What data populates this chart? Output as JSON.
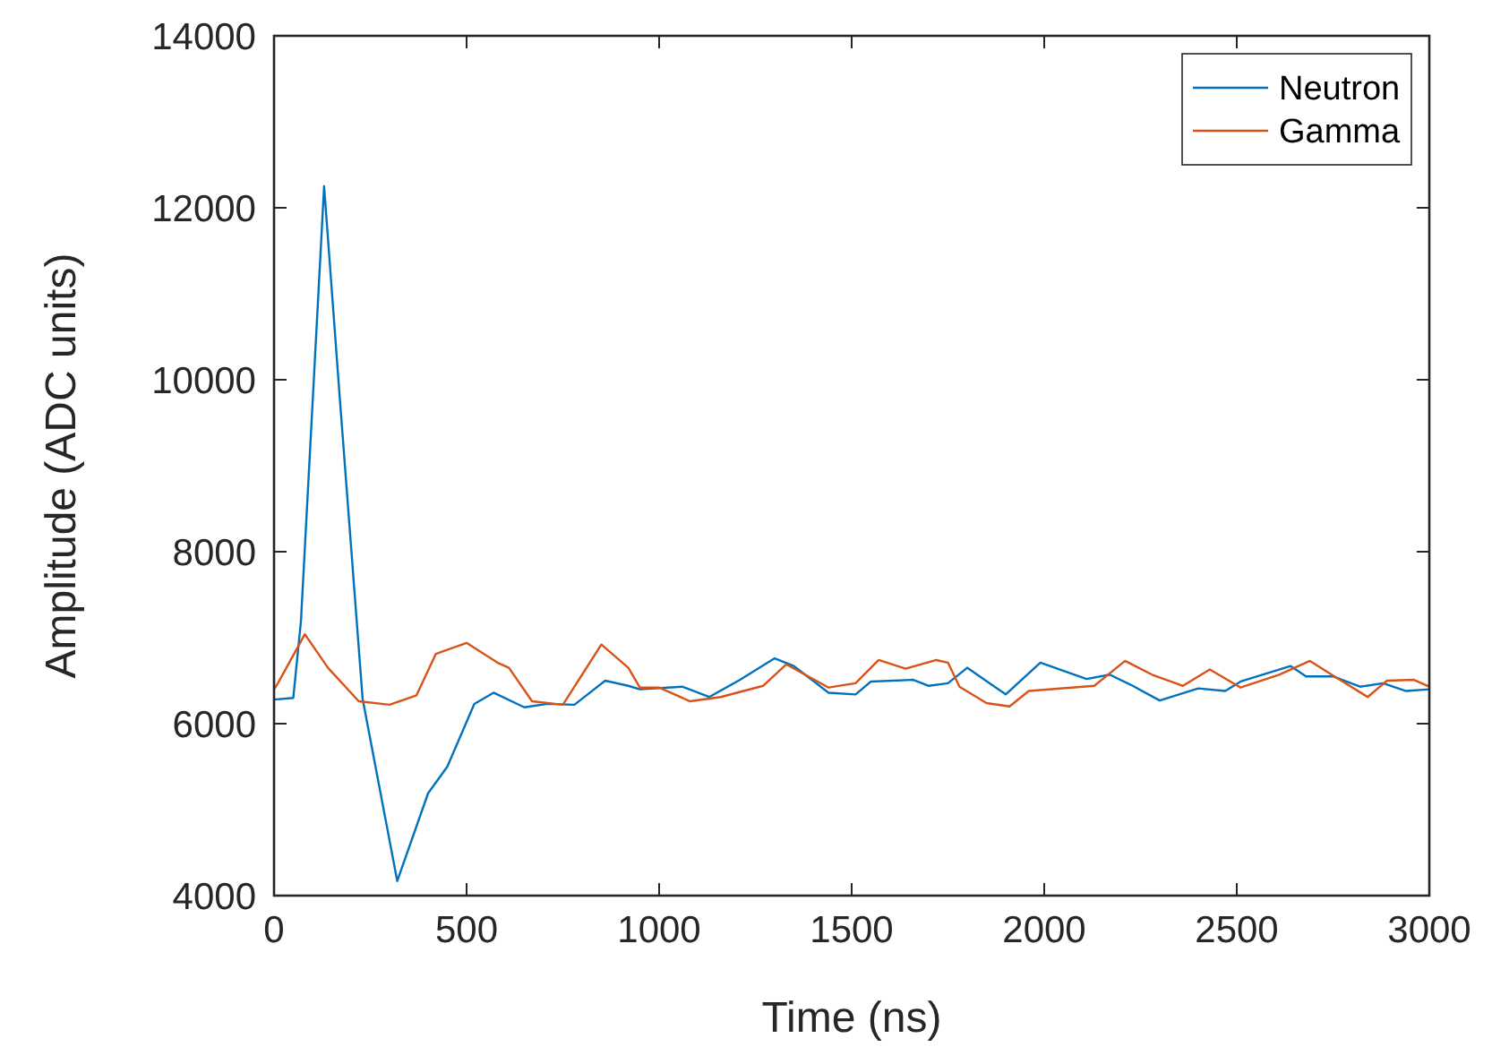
{
  "chart_data": {
    "type": "line",
    "xlabel": "Time (ns)",
    "ylabel": "Amplitude (ADC units)",
    "xlim": [
      0,
      3000
    ],
    "xticks": [
      0,
      500,
      1000,
      1500,
      2000,
      2500,
      3000
    ],
    "ylim": [
      4000,
      14000
    ],
    "yticks": [
      4000,
      6000,
      8000,
      10000,
      12000,
      14000
    ],
    "grid": false,
    "legend": "top right",
    "marker": "none",
    "line_style": "solid",
    "series": [
      {
        "name": "Neutron",
        "color": "#0072bd",
        "x": [
          0,
          50,
          70,
          130,
          170,
          230,
          320,
          400,
          450,
          520,
          570,
          650,
          710,
          780,
          860,
          920,
          950,
          1060,
          1130,
          1210,
          1300,
          1350,
          1440,
          1510,
          1550,
          1660,
          1700,
          1750,
          1800,
          1900,
          1990,
          2110,
          2170,
          2230,
          2300,
          2400,
          2470,
          2510,
          2640,
          2680,
          2750,
          2820,
          2880,
          2940,
          3000
        ],
        "values": [
          6280,
          6300,
          7200,
          12250,
          9830,
          6290,
          4170,
          5190,
          5500,
          6230,
          6360,
          6190,
          6230,
          6220,
          6500,
          6440,
          6400,
          6430,
          6310,
          6510,
          6760,
          6670,
          6360,
          6340,
          6490,
          6510,
          6440,
          6470,
          6650,
          6340,
          6710,
          6520,
          6570,
          6440,
          6270,
          6410,
          6380,
          6490,
          6670,
          6550,
          6550,
          6430,
          6470,
          6380,
          6400
        ]
      },
      {
        "name": "Gamma",
        "color": "#d95319",
        "x": [
          0,
          10,
          80,
          140,
          220,
          300,
          370,
          420,
          500,
          580,
          610,
          670,
          750,
          790,
          850,
          920,
          950,
          1000,
          1080,
          1160,
          1270,
          1330,
          1440,
          1510,
          1570,
          1640,
          1720,
          1750,
          1780,
          1850,
          1910,
          1960,
          2130,
          2210,
          2280,
          2360,
          2430,
          2510,
          2610,
          2690,
          2750,
          2840,
          2890,
          2960,
          3000
        ],
        "values": [
          6400,
          6470,
          7040,
          6650,
          6260,
          6220,
          6330,
          6810,
          6940,
          6710,
          6650,
          6260,
          6220,
          6500,
          6920,
          6650,
          6420,
          6420,
          6260,
          6310,
          6440,
          6690,
          6420,
          6470,
          6740,
          6640,
          6740,
          6710,
          6430,
          6240,
          6200,
          6380,
          6440,
          6730,
          6570,
          6440,
          6630,
          6420,
          6570,
          6730,
          6560,
          6310,
          6500,
          6510,
          6430
        ]
      }
    ]
  }
}
